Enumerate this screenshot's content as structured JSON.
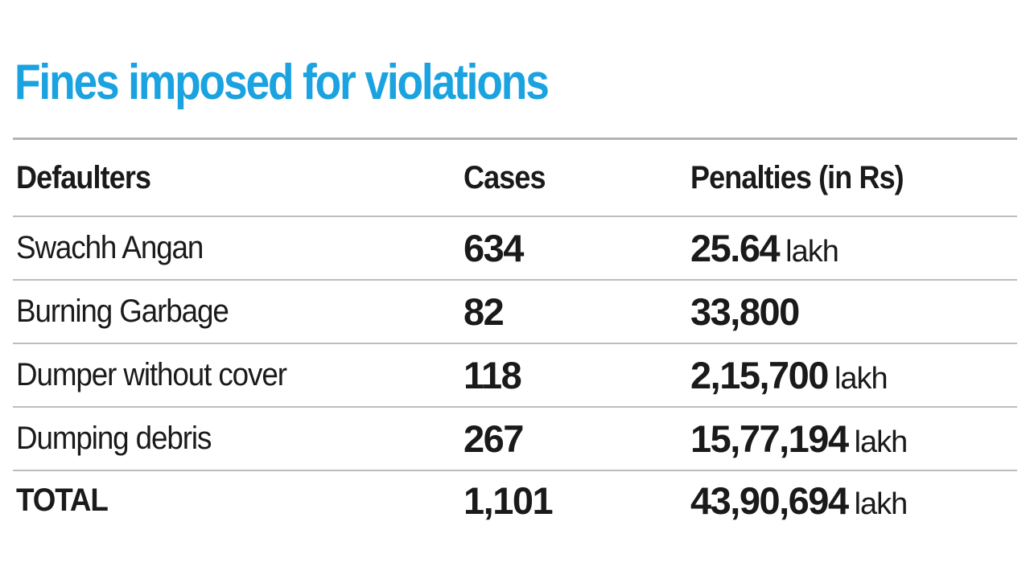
{
  "chart_data": {
    "type": "table",
    "title": "Fines imposed for violations",
    "title_color": "#1aa3e0",
    "columns": [
      "Defaulters",
      "Cases",
      "Penalties (in Rs)"
    ],
    "rows": [
      {
        "defaulter": "Swachh Angan",
        "cases": "634",
        "penalty": "25.64",
        "unit": "lakh"
      },
      {
        "defaulter": "Burning Garbage",
        "cases": "82",
        "penalty": "33,800",
        "unit": ""
      },
      {
        "defaulter": "Dumper without cover",
        "cases": "118",
        "penalty": "2,15,700",
        "unit": "lakh"
      },
      {
        "defaulter": "Dumping debris",
        "cases": "267",
        "penalty": "15,77,194",
        "unit": "lakh"
      }
    ],
    "total": {
      "defaulter": "TOTAL",
      "cases": "1,101",
      "penalty": "43,90,694",
      "unit": "lakh"
    }
  }
}
